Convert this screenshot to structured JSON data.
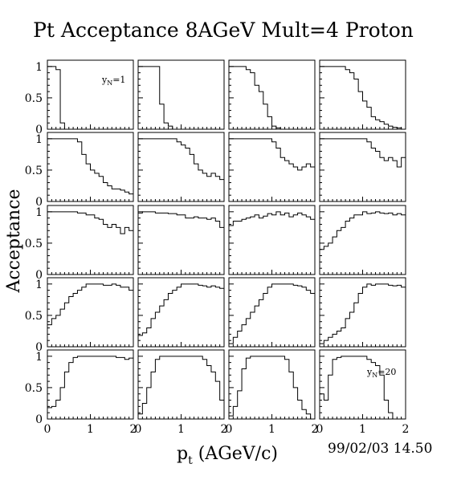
{
  "figure": {
    "title": "Pt Acceptance 8AGeV Mult=4 Proton",
    "ylabel": "Acceptance",
    "xlabel_main": "p",
    "xlabel_sub": "t",
    "xlabel_rest": " (AGeV/c)",
    "timestamp": "99/02/03   14.50"
  },
  "chart_data": {
    "type": "histogram-grid",
    "title": "Pt Acceptance 8AGeV Mult=4 Proton",
    "xlabel": "p_t (AGeV/c)",
    "ylabel": "Acceptance",
    "rows": 5,
    "cols": 4,
    "xlim": [
      0,
      2
    ],
    "ylim": [
      0,
      1.1
    ],
    "bin_width": 0.1,
    "x_tick_labels": [
      "0",
      "1",
      "2"
    ],
    "y_tick_labels": [
      "0",
      "0.5",
      "1"
    ],
    "panel_labels": [
      {
        "panel": 0,
        "main": "y",
        "sub": "N",
        "rest": "=1"
      },
      {
        "panel": 19,
        "main": "y",
        "sub": "N",
        "rest": "=20"
      }
    ],
    "panels": [
      [
        1.0,
        1.0,
        0.95,
        0.1,
        0,
        0,
        0,
        0,
        0,
        0,
        0,
        0,
        0,
        0,
        0,
        0,
        0,
        0,
        0,
        0
      ],
      [
        1.0,
        1.0,
        1.0,
        1.0,
        1.0,
        0.4,
        0.1,
        0.05,
        0,
        0,
        0,
        0,
        0,
        0,
        0,
        0,
        0,
        0,
        0,
        0
      ],
      [
        1.0,
        1.0,
        1.0,
        1.0,
        0.95,
        0.9,
        0.7,
        0.6,
        0.4,
        0.2,
        0.05,
        0.02,
        0,
        0,
        0,
        0,
        0,
        0,
        0,
        0
      ],
      [
        1.0,
        1.0,
        1.0,
        1.0,
        1.0,
        1.0,
        0.95,
        0.9,
        0.8,
        0.6,
        0.45,
        0.35,
        0.2,
        0.15,
        0.12,
        0.08,
        0.05,
        0.03,
        0.02,
        0
      ],
      [
        1.0,
        1.0,
        1.0,
        1.0,
        1.0,
        1.0,
        1.0,
        0.95,
        0.75,
        0.6,
        0.5,
        0.45,
        0.4,
        0.3,
        0.25,
        0.2,
        0.2,
        0.18,
        0.15,
        0.12
      ],
      [
        1.0,
        1.0,
        1.0,
        1.0,
        1.0,
        1.0,
        1.0,
        1.0,
        1.0,
        0.95,
        0.9,
        0.85,
        0.75,
        0.6,
        0.5,
        0.45,
        0.4,
        0.45,
        0.4,
        0.35
      ],
      [
        1.0,
        1.0,
        1.0,
        1.0,
        1.0,
        1.0,
        1.0,
        1.0,
        1.0,
        1.0,
        0.95,
        0.85,
        0.7,
        0.65,
        0.6,
        0.55,
        0.5,
        0.55,
        0.6,
        0.55
      ],
      [
        1.0,
        1.0,
        1.0,
        1.0,
        1.0,
        1.0,
        1.0,
        1.0,
        1.0,
        1.0,
        1.0,
        0.95,
        0.85,
        0.8,
        0.7,
        0.65,
        0.7,
        0.65,
        0.55,
        0.7
      ],
      [
        1.0,
        1.0,
        1.0,
        1.0,
        1.0,
        1.0,
        1.0,
        0.98,
        0.98,
        0.95,
        0.95,
        0.9,
        0.88,
        0.8,
        0.75,
        0.8,
        0.75,
        0.65,
        0.75,
        0.7
      ],
      [
        0.98,
        1.0,
        1.0,
        1.0,
        0.98,
        0.98,
        0.98,
        0.97,
        0.97,
        0.95,
        0.95,
        0.9,
        0.9,
        0.92,
        0.9,
        0.9,
        0.88,
        0.9,
        0.85,
        0.75
      ],
      [
        0.78,
        0.85,
        0.85,
        0.88,
        0.9,
        0.92,
        0.95,
        0.9,
        0.93,
        0.97,
        0.95,
        1.0,
        0.95,
        0.98,
        0.92,
        0.95,
        0.98,
        0.95,
        0.92,
        0.88
      ],
      [
        0.4,
        0.45,
        0.5,
        0.6,
        0.7,
        0.75,
        0.85,
        0.9,
        0.95,
        0.95,
        1.0,
        0.97,
        0.98,
        1.0,
        0.98,
        0.97,
        0.98,
        0.95,
        0.97,
        0.95
      ],
      [
        0.35,
        0.45,
        0.5,
        0.6,
        0.7,
        0.8,
        0.85,
        0.9,
        0.95,
        1.0,
        1.0,
        1.0,
        1.0,
        0.98,
        0.98,
        1.0,
        0.98,
        0.95,
        0.95,
        0.9
      ],
      [
        0.18,
        0.22,
        0.3,
        0.45,
        0.55,
        0.65,
        0.75,
        0.85,
        0.9,
        0.95,
        1.0,
        1.0,
        1.0,
        1.0,
        0.98,
        0.97,
        0.95,
        0.97,
        0.95,
        0.93
      ],
      [
        0.05,
        0.15,
        0.25,
        0.35,
        0.45,
        0.55,
        0.65,
        0.75,
        0.85,
        0.95,
        1.0,
        1.0,
        1.0,
        1.0,
        1.0,
        0.98,
        0.97,
        0.95,
        0.9,
        0.85
      ],
      [
        0.05,
        0.1,
        0.15,
        0.2,
        0.25,
        0.3,
        0.45,
        0.55,
        0.7,
        0.85,
        0.95,
        1.0,
        0.98,
        1.0,
        1.0,
        1.0,
        0.98,
        0.97,
        0.98,
        0.95
      ],
      [
        0.18,
        0.2,
        0.3,
        0.5,
        0.75,
        0.9,
        0.98,
        1.0,
        1.0,
        1.0,
        1.0,
        1.0,
        1.0,
        1.0,
        1.0,
        1.0,
        0.98,
        0.98,
        0.95,
        0.97
      ],
      [
        0.08,
        0.25,
        0.5,
        0.75,
        0.95,
        1.0,
        1.0,
        1.0,
        1.0,
        1.0,
        1.0,
        1.0,
        1.0,
        1.0,
        1.0,
        0.95,
        0.85,
        0.75,
        0.6,
        0.3
      ],
      [
        0.05,
        0.2,
        0.45,
        0.8,
        0.97,
        1.0,
        1.0,
        1.0,
        1.0,
        1.0,
        1.0,
        1.0,
        1.0,
        0.95,
        0.75,
        0.5,
        0.3,
        0.15,
        0.08,
        0
      ],
      [
        0.4,
        0.3,
        0.7,
        0.95,
        0.98,
        1.0,
        1.0,
        1.0,
        1.0,
        1.0,
        1.0,
        0.95,
        0.9,
        0.85,
        0.7,
        0.3,
        0.1,
        0,
        0,
        0
      ]
    ]
  }
}
